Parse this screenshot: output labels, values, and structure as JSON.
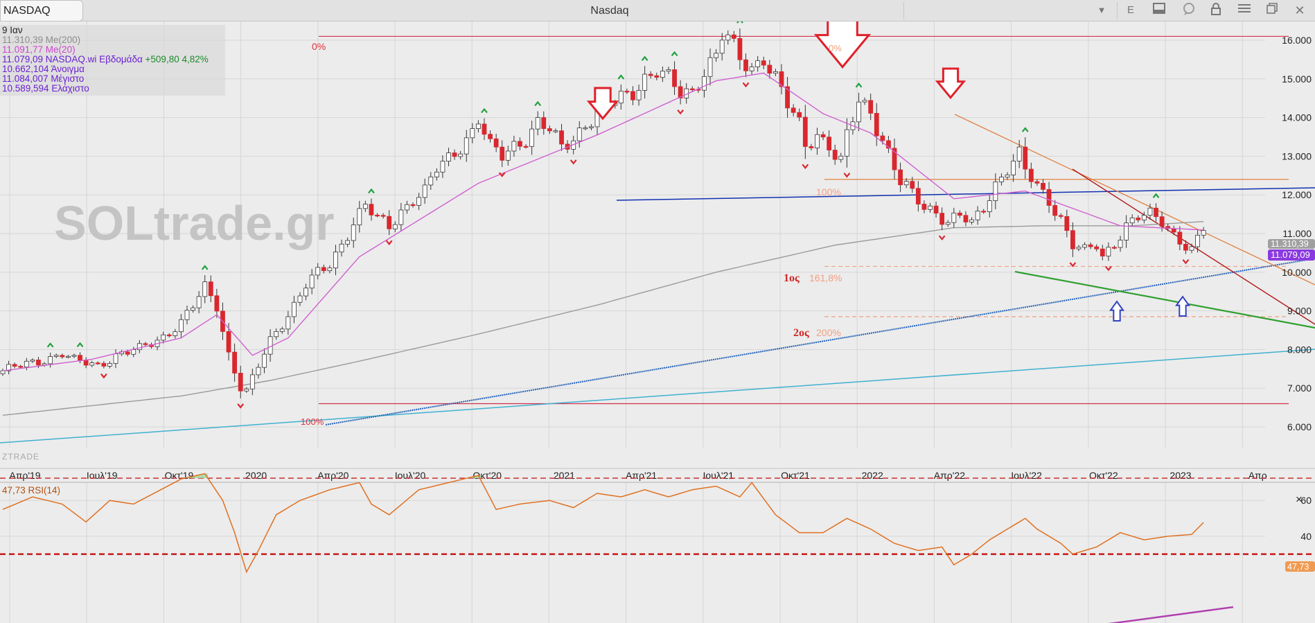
{
  "window": {
    "symbol": "NASDAQ",
    "title": "Nasdaq",
    "button_e": "E"
  },
  "colors": {
    "background": "#ececec",
    "grid": "#d6d6d6",
    "candle_up": "#ffffff",
    "candle_down": "#d9272e",
    "candle_neutral": "#555555",
    "ma20": "#d060d0",
    "ma200": "#9a9a9a",
    "rsi_line": "#e07020",
    "fib_line": "#d0304a",
    "fib_dashed": "#f0a080",
    "arrow_red": "#e0202a",
    "arrow_blue": "#3040c0",
    "fractal_up": "#20a040",
    "trend_blue": "#1030b0",
    "trend_steel": "#2060b8",
    "trend_cyan": "#40b0d0",
    "trend_green": "#30a030",
    "trend_orange": "#e08040",
    "trend_darkred": "#b01818",
    "trend_purple": "#b040b0",
    "ma200_tag": "#9a9a9a",
    "price_tag": "#8a3ae0",
    "rsi_tag": "#f09a50"
  },
  "info": {
    "date": "9 Ιαν",
    "ma200": "11.310,39 Me(200)",
    "ma20": "11.091,77 Me(20)",
    "close_label": "11.079,09 NASDAQ.wi Εβδομάδα",
    "change": "+509,80 4,82%",
    "open": "10.662,104 Άνοιγμα",
    "high": "11.084,007 Μέγιστο",
    "low": "10.589,594 Ελάχιστο"
  },
  "watermark": "SOLtrade.gr",
  "brand": "ZTRADE",
  "annotations": {
    "fib_0_left": "0%",
    "fib_0_top": "0%",
    "fib_100_mid": "100%",
    "fib_100_low": "100%",
    "target1_label": "1ος",
    "target1_pct": "161,8%",
    "target2_label": "2ος",
    "target2_pct": "200%"
  },
  "price_tags": {
    "ma200": "11.310,39",
    "last": "11.079,09"
  },
  "rsi": {
    "label": "47,73 RSI(14)",
    "tag": "47,73",
    "close_icon": "×"
  },
  "chart_data": {
    "type": "candlestick",
    "title": "Nasdaq",
    "timeframe": "Εβδομάδα",
    "x_tick_labels": [
      "Απρ'19",
      "Ιουλ'19",
      "Οκτ'19",
      "2020",
      "Απρ'20",
      "Ιουλ'20",
      "Οκτ'20",
      "2021",
      "Απρ'21",
      "Ιουλ'21",
      "Οκτ'21",
      "2022",
      "Απρ'22",
      "Ιουλ'22",
      "Οκτ'22",
      "2023",
      "Απρ"
    ],
    "y_tick_labels": [
      "6.000",
      "7.000",
      "8.000",
      "9.000",
      "10.000",
      "11.000",
      "12.000",
      "13.000",
      "14.000",
      "15.000",
      "16.000"
    ],
    "ylim": [
      5800,
      16600
    ],
    "close_path": [
      [
        0,
        7450
      ],
      [
        6,
        7700
      ],
      [
        10,
        7900
      ],
      [
        12,
        7700
      ],
      [
        16,
        7600
      ],
      [
        19,
        7850
      ],
      [
        23,
        8000
      ],
      [
        27,
        8350
      ],
      [
        30,
        8700
      ],
      [
        32,
        9100
      ],
      [
        34,
        9600
      ],
      [
        36,
        9150
      ],
      [
        38,
        7900
      ],
      [
        40,
        7000
      ],
      [
        41,
        6900
      ],
      [
        43,
        7550
      ],
      [
        45,
        8250
      ],
      [
        47,
        8700
      ],
      [
        49,
        9150
      ],
      [
        51,
        9650
      ],
      [
        53,
        9950
      ],
      [
        55,
        10200
      ],
      [
        57,
        10750
      ],
      [
        59,
        11300
      ],
      [
        61,
        11700
      ],
      [
        63,
        11350
      ],
      [
        65,
        11200
      ],
      [
        67,
        11600
      ],
      [
        69,
        11900
      ],
      [
        71,
        12050
      ],
      [
        73,
        12650
      ],
      [
        75,
        12950
      ],
      [
        77,
        13300
      ],
      [
        79,
        13650
      ],
      [
        80,
        13950
      ],
      [
        82,
        13200
      ],
      [
        84,
        13000
      ],
      [
        86,
        13300
      ],
      [
        88,
        13500
      ],
      [
        90,
        13850
      ],
      [
        92,
        13650
      ],
      [
        94,
        13200
      ],
      [
        96,
        13500
      ],
      [
        98,
        13850
      ],
      [
        100,
        14100
      ],
      [
        102,
        14300
      ],
      [
        104,
        14500
      ],
      [
        106,
        14700
      ],
      [
        108,
        15050
      ],
      [
        110,
        15200
      ],
      [
        112,
        14950
      ],
      [
        114,
        14600
      ],
      [
        116,
        14700
      ],
      [
        118,
        15250
      ],
      [
        120,
        15600
      ],
      [
        121,
        16100
      ],
      [
        122,
        16000
      ],
      [
        124,
        15500
      ],
      [
        126,
        15300
      ],
      [
        128,
        15600
      ],
      [
        130,
        15000
      ],
      [
        132,
        14300
      ],
      [
        134,
        13800
      ],
      [
        135,
        13300
      ],
      [
        137,
        13600
      ],
      [
        139,
        13300
      ],
      [
        140,
        13000
      ],
      [
        141,
        12800
      ],
      [
        142,
        13500
      ],
      [
        144,
        14400
      ],
      [
        146,
        14200
      ],
      [
        147,
        13800
      ],
      [
        149,
        13100
      ],
      [
        151,
        12300
      ],
      [
        153,
        12000
      ],
      [
        155,
        11700
      ],
      [
        157,
        11600
      ],
      [
        159,
        11300
      ],
      [
        161,
        11450
      ],
      [
        163,
        11200
      ],
      [
        165,
        11700
      ],
      [
        167,
        12300
      ],
      [
        169,
        12700
      ],
      [
        171,
        13000
      ],
      [
        172,
        12600
      ],
      [
        174,
        12200
      ],
      [
        176,
        11900
      ],
      [
        178,
        11400
      ],
      [
        180,
        10700
      ],
      [
        182,
        10500
      ],
      [
        184,
        10700
      ],
      [
        185,
        10400
      ],
      [
        187,
        10800
      ],
      [
        189,
        11200
      ],
      [
        191,
        11400
      ],
      [
        193,
        11450
      ],
      [
        195,
        11350
      ],
      [
        197,
        11000
      ],
      [
        199,
        10700
      ],
      [
        200,
        10550
      ],
      [
        201,
        10800
      ],
      [
        202,
        11079
      ]
    ],
    "series": [
      {
        "name": "Me(200)",
        "values": [
          [
            0,
            6300
          ],
          [
            30,
            6800
          ],
          [
            45,
            7200
          ],
          [
            60,
            7700
          ],
          [
            80,
            8400
          ],
          [
            100,
            9150
          ],
          [
            120,
            10000
          ],
          [
            140,
            10700
          ],
          [
            160,
            11150
          ],
          [
            175,
            11200
          ],
          [
            190,
            11200
          ],
          [
            202,
            11310
          ]
        ]
      },
      {
        "name": "Me(20)",
        "values": [
          [
            0,
            7450
          ],
          [
            15,
            7750
          ],
          [
            30,
            8300
          ],
          [
            36,
            8900
          ],
          [
            42,
            7850
          ],
          [
            48,
            8300
          ],
          [
            60,
            10400
          ],
          [
            80,
            12300
          ],
          [
            100,
            13550
          ],
          [
            120,
            14950
          ],
          [
            128,
            15150
          ],
          [
            138,
            14100
          ],
          [
            146,
            13600
          ],
          [
            160,
            11900
          ],
          [
            172,
            12100
          ],
          [
            188,
            11200
          ],
          [
            202,
            11092
          ]
        ]
      },
      {
        "name": "RSI(14)",
        "values": [
          [
            0,
            55
          ],
          [
            5,
            62
          ],
          [
            10,
            58
          ],
          [
            14,
            48
          ],
          [
            18,
            60
          ],
          [
            22,
            58
          ],
          [
            26,
            65
          ],
          [
            30,
            72
          ],
          [
            34,
            75
          ],
          [
            37,
            60
          ],
          [
            39,
            42
          ],
          [
            41,
            20
          ],
          [
            43,
            32
          ],
          [
            46,
            52
          ],
          [
            50,
            60
          ],
          [
            55,
            66
          ],
          [
            60,
            70
          ],
          [
            62,
            58
          ],
          [
            65,
            52
          ],
          [
            70,
            66
          ],
          [
            75,
            70
          ],
          [
            80,
            74
          ],
          [
            83,
            55
          ],
          [
            87,
            58
          ],
          [
            92,
            60
          ],
          [
            96,
            56
          ],
          [
            100,
            64
          ],
          [
            104,
            62
          ],
          [
            108,
            66
          ],
          [
            112,
            62
          ],
          [
            116,
            66
          ],
          [
            120,
            68
          ],
          [
            124,
            62
          ],
          [
            126,
            70
          ],
          [
            130,
            52
          ],
          [
            134,
            42
          ],
          [
            138,
            42
          ],
          [
            142,
            50
          ],
          [
            146,
            44
          ],
          [
            150,
            36
          ],
          [
            154,
            32
          ],
          [
            158,
            34
          ],
          [
            160,
            24
          ],
          [
            163,
            30
          ],
          [
            166,
            38
          ],
          [
            170,
            46
          ],
          [
            172,
            50
          ],
          [
            174,
            44
          ],
          [
            178,
            36
          ],
          [
            180,
            30
          ],
          [
            184,
            34
          ],
          [
            188,
            42
          ],
          [
            192,
            38
          ],
          [
            196,
            40
          ],
          [
            200,
            41
          ],
          [
            202,
            47.73
          ]
        ]
      }
    ],
    "rsi_levels": [
      70,
      30
    ],
    "rsi_axis_labels": [
      "60",
      "40"
    ],
    "horizontal_levels": [
      {
        "label": "0%",
        "value": 16100
      },
      {
        "label": "100%",
        "value": 6600
      },
      {
        "label": "100%",
        "value": 12400
      },
      {
        "label": "161,8%",
        "value": 10150
      },
      {
        "label": "200%",
        "value": 8850
      }
    ]
  }
}
